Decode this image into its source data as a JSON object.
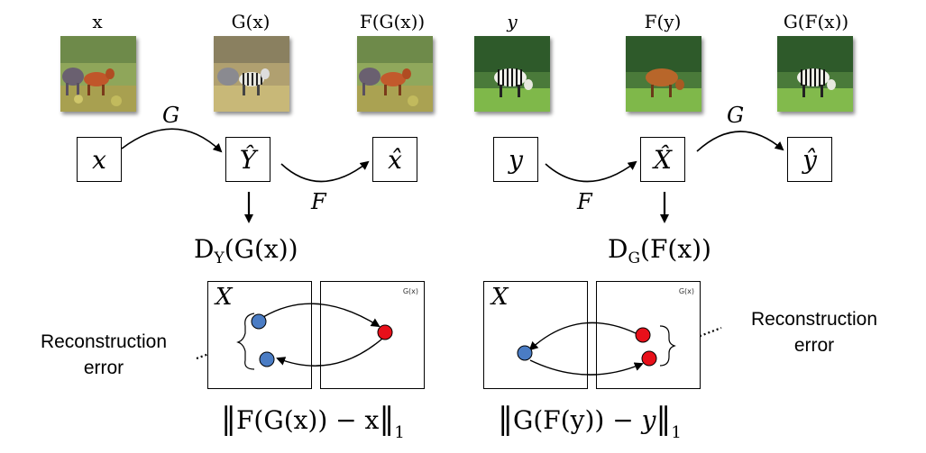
{
  "top_labels": {
    "x": "x",
    "gx": "G(x)",
    "fgx": "F(G(x))",
    "y": "y",
    "fy": "F(y)",
    "gfx": "G(F(x))"
  },
  "nodes": {
    "x": "x",
    "y_hat": "Ŷ",
    "x_hat": "x̂",
    "y": "y",
    "x_hat_cap": "X̂",
    "y_hat_small": "ŷ"
  },
  "arrow_labels": {
    "g_left": "G",
    "f_left": "F",
    "f_right": "F",
    "g_right": "G"
  },
  "discriminators": {
    "left_main": "D",
    "left_sub": "Y",
    "left_arg": "(G(x))",
    "right_main": "D",
    "right_sub": "G",
    "right_arg": "(F(x))"
  },
  "panels": {
    "domain_label": "X",
    "left_tiny": "G(x)",
    "right_tiny": "G(x)"
  },
  "reconstruction": {
    "left_line1": "Reconstruction",
    "left_line2": "error",
    "right_line1": "Reconstruction",
    "right_line2": "error"
  },
  "losses": {
    "left_pre": "F(G(x)) − x",
    "left_sub": "1",
    "right_pre": "G(F(y)) − ",
    "right_var": "y",
    "right_sub": "1"
  },
  "colors": {
    "blue_point": "#4a7cc4",
    "red_point": "#e8101a",
    "line": "#000000"
  }
}
